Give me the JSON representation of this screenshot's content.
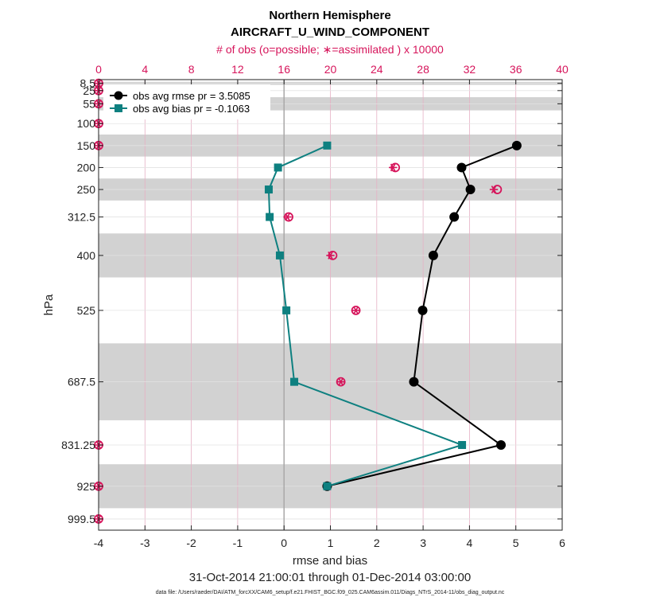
{
  "chart_data": {
    "type": "line",
    "title": "Northern Hemisphere",
    "subtitle": "AIRCRAFT_U_WIND_COMPONENT",
    "top_axis_label": "# of obs (o=possible; ∗=assimilated ) x 10000",
    "xlabel": "rmse and bias",
    "ylabel": "hPa",
    "date_range": "31-Oct-2014 21:00:01 through 01-Dec-2014 03:00:00",
    "data_file": "data file: /Users/raeder/DAI/ATM_forcXX/CAM6_setup/f.e21.FHIST_BGC.f09_025.CAM6assim.011/Diags_NTrS_2014-11/obs_diag_output.nc",
    "xlim": [
      -4,
      6
    ],
    "x_ticks": [
      -4,
      -3,
      -2,
      -1,
      0,
      1,
      2,
      3,
      4,
      5,
      6
    ],
    "top_xlim": [
      0,
      40
    ],
    "top_ticks": [
      0,
      4,
      8,
      12,
      16,
      20,
      24,
      28,
      32,
      36,
      40
    ],
    "ylim": [
      1025,
      0
    ],
    "levels": [
      8.5,
      25,
      55,
      100,
      150,
      200,
      250,
      312.5,
      400,
      525,
      687.5,
      831.25,
      925,
      999.5
    ],
    "level_labels": [
      "8.5",
      "25",
      "55",
      "100",
      "150",
      "200",
      "250",
      "312.5",
      "400",
      "525",
      "687.5",
      "831.25",
      "925",
      "999.5"
    ],
    "bands": [
      [
        5,
        12
      ],
      [
        40,
        70
      ],
      [
        125,
        175
      ],
      [
        225,
        275
      ],
      [
        350,
        450
      ],
      [
        600,
        775
      ],
      [
        875,
        975
      ]
    ],
    "series": [
      {
        "name": "obs avg rmse",
        "legend": "obs avg rmse pr = 3.5085",
        "color": "#000000",
        "marker": "circle",
        "points": [
          [
            5.02,
            150
          ],
          [
            3.83,
            200
          ],
          [
            4.02,
            250
          ],
          [
            3.67,
            312.5
          ],
          [
            3.22,
            400
          ],
          [
            2.99,
            525
          ],
          [
            2.8,
            687.5
          ],
          [
            4.68,
            831.25
          ],
          [
            0.93,
            925
          ]
        ]
      },
      {
        "name": "obs avg bias",
        "legend": "obs avg bias pr = -0.1063",
        "color": "#0e8080",
        "marker": "square",
        "points": [
          [
            0.93,
            150
          ],
          [
            -0.13,
            200
          ],
          [
            -0.33,
            250
          ],
          [
            -0.31,
            312.5
          ],
          [
            -0.09,
            400
          ],
          [
            0.05,
            525
          ],
          [
            0.22,
            687.5
          ],
          [
            3.84,
            831.25
          ],
          [
            0.93,
            925
          ]
        ]
      }
    ],
    "obs_counts": {
      "possible": [
        [
          0,
          8.5
        ],
        [
          0,
          25
        ],
        [
          0,
          55
        ],
        [
          0,
          100
        ],
        [
          0,
          150
        ],
        [
          25.6,
          200
        ],
        [
          34.4,
          250
        ],
        [
          16.4,
          312.5
        ],
        [
          20.2,
          400
        ],
        [
          22.2,
          525
        ],
        [
          20.9,
          687.5
        ],
        [
          0,
          831.25
        ],
        [
          0,
          925
        ],
        [
          0,
          999.5
        ]
      ],
      "assimilated": [
        [
          0,
          8.5
        ],
        [
          0,
          25
        ],
        [
          0,
          55
        ],
        [
          0,
          100
        ],
        [
          0,
          150
        ],
        [
          25.4,
          200
        ],
        [
          34.1,
          250
        ],
        [
          16.3,
          312.5
        ],
        [
          20.0,
          400
        ],
        [
          22.2,
          525
        ],
        [
          20.9,
          687.5
        ],
        [
          0,
          831.25
        ],
        [
          0,
          925
        ],
        [
          0,
          999.5
        ]
      ]
    },
    "colors": {
      "obs": "#d6155b",
      "band": "#d2d2d2",
      "grid_v": "#e6b0c4",
      "grid_h": "#e3e3e3",
      "zero": "#a9a9a9"
    }
  }
}
